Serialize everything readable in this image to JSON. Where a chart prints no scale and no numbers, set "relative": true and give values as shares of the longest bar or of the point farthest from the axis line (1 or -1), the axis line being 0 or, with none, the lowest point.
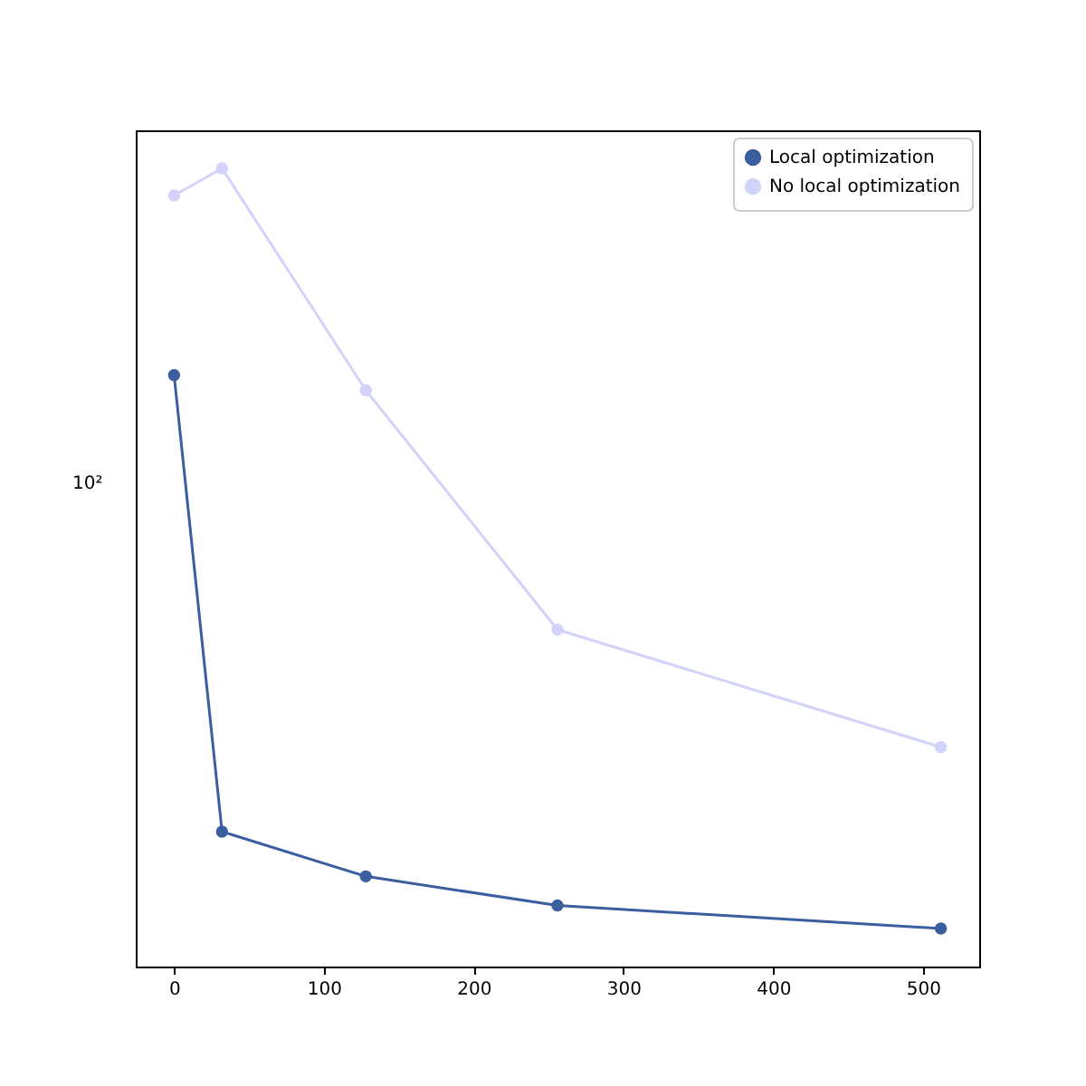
{
  "chart_data": {
    "type": "line",
    "relative": true,
    "x": [
      0,
      32,
      128,
      256,
      512
    ],
    "series": [
      {
        "name": "Local optimization",
        "color": "#3a5e9f",
        "values": [
          0.741,
          0.169,
          0.113,
          0.0765,
          0.0477
        ]
      },
      {
        "name": "No local optimization",
        "color": "#d2d2fb",
        "values": [
          0.966,
          1,
          0.722,
          0.422,
          0.275
        ]
      }
    ],
    "xlim": [
      -25.6,
      537.6
    ],
    "xticks": [
      0,
      100,
      200,
      300,
      400,
      500
    ],
    "annotations": [
      "10²"
    ],
    "marker": "circle",
    "line_style": "solid",
    "legend": "top right"
  }
}
